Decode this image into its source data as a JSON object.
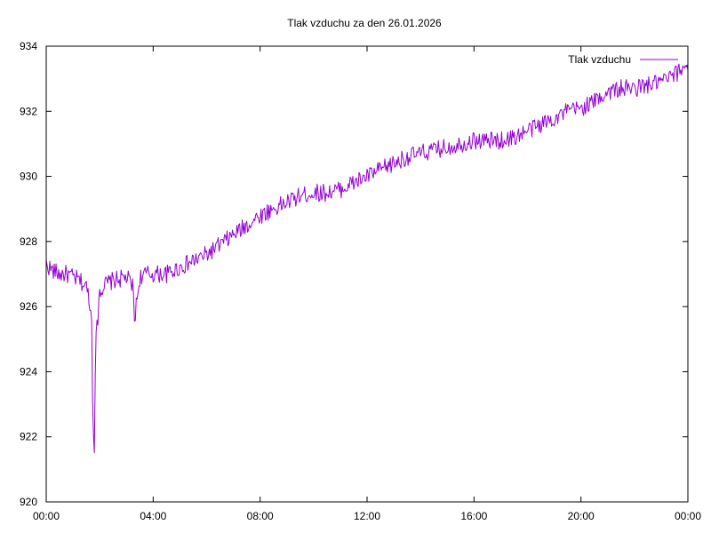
{
  "chart_data": {
    "type": "line",
    "title": "Tlak vzduchu za den 26.01.2026",
    "xlabel": "",
    "ylabel": "",
    "x_tick_labels": [
      "00:00",
      "04:00",
      "08:00",
      "12:00",
      "16:00",
      "20:00",
      "00:00"
    ],
    "x_tick_hours": [
      0,
      4,
      8,
      12,
      16,
      20,
      24
    ],
    "y_ticks": [
      920,
      922,
      924,
      926,
      928,
      930,
      932,
      934
    ],
    "xlim_hours": [
      0,
      24
    ],
    "ylim": [
      920,
      934
    ],
    "grid": false,
    "legend_position": "top-right",
    "series": [
      {
        "name": "Tlak vzduchu",
        "color": "#9400D3",
        "x_hours": [
          0,
          0.25,
          0.5,
          0.75,
          1,
          1.25,
          1.5,
          1.6,
          1.7,
          1.75,
          1.8,
          1.85,
          1.9,
          2,
          2.25,
          2.5,
          3,
          3.25,
          3.3,
          3.5,
          3.75,
          4,
          4.5,
          5,
          5.5,
          5.75,
          6,
          6.5,
          7,
          7.5,
          8,
          8.5,
          9,
          9.5,
          10,
          10.5,
          11,
          11.5,
          12,
          12.5,
          13,
          13.5,
          14,
          14.5,
          15,
          15.5,
          16,
          16.5,
          17,
          17.5,
          18,
          18.5,
          19,
          19.5,
          20,
          20.5,
          21,
          21.5,
          22,
          22.5,
          23,
          23.5,
          24
        ],
        "values": [
          927.3,
          927.1,
          927.0,
          927.0,
          926.9,
          926.8,
          926.6,
          926.3,
          925.5,
          922.8,
          922.2,
          924.0,
          925.8,
          926.5,
          926.7,
          926.8,
          926.9,
          926.6,
          925.6,
          926.9,
          927.0,
          927.0,
          927.0,
          927.2,
          927.4,
          927.5,
          927.6,
          927.9,
          928.2,
          928.5,
          928.8,
          929.0,
          929.2,
          929.4,
          929.5,
          929.5,
          929.6,
          929.8,
          930.0,
          930.2,
          930.4,
          930.6,
          930.7,
          930.8,
          930.9,
          931.0,
          931.1,
          931.1,
          931.1,
          931.2,
          931.4,
          931.6,
          931.8,
          932.0,
          932.1,
          932.3,
          932.6,
          932.7,
          932.7,
          932.8,
          932.9,
          933.1,
          933.5
        ]
      }
    ]
  }
}
